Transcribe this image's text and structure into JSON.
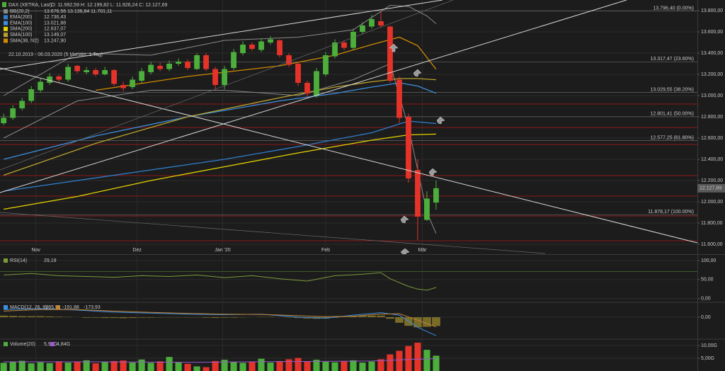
{
  "chart_data": [
    {
      "type": "candlestick",
      "title": "DAX (XETRA, Last)",
      "ohlc_label": "O: 11.992,59  H: 12.199,82  L: 11.926,24  C: 12.127,69",
      "period": "22.10.2019 - 06.03.2020 (5 Monate, 1 Tag)",
      "up_color": "#4caf3c",
      "down_color": "#e5332a",
      "xlim": [
        -0.4,
        75.4
      ],
      "xticks": [
        {
          "value": 3.5,
          "label": "Nov"
        },
        {
          "value": 14.5,
          "label": "Dez"
        },
        {
          "value": 23.8,
          "label": "Jan '20"
        },
        {
          "value": 35,
          "label": "Feb"
        },
        {
          "value": 45.5,
          "label": "Mär"
        }
      ],
      "ylim": [
        11520,
        13900
      ],
      "yticks": [
        {
          "value": 13800,
          "label": "13.800,00"
        },
        {
          "value": 13600,
          "label": "13.600,00"
        },
        {
          "value": 13400,
          "label": "13.400,00"
        },
        {
          "value": 13200,
          "label": "13.200,00"
        },
        {
          "value": 13000,
          "label": "13.000,00"
        },
        {
          "value": 12800,
          "label": "12.800,00"
        },
        {
          "value": 12600,
          "label": "12.600,00"
        },
        {
          "value": 12400,
          "label": "12.400,00"
        },
        {
          "value": 12200,
          "label": "12.200,00"
        },
        {
          "value": 12000,
          "label": "12.000,00"
        },
        {
          "value": 11800,
          "label": "11.800,00"
        },
        {
          "value": 11600,
          "label": "11.600,00"
        }
      ],
      "last_price": {
        "value": 12127.69,
        "label": "12.127,69"
      },
      "fib": [
        {
          "value": 13796.4,
          "label": "13.796,40 (0.00%)"
        },
        {
          "value": 13317.47,
          "label": "13.317,47 (23.60%)"
        },
        {
          "value": 13029.55,
          "label": "13.029,55 (38.20%)"
        },
        {
          "value": 12801.41,
          "label": "12.801,41 (50.00%)"
        },
        {
          "value": 12577.25,
          "label": "12.577,25 (61.80%)"
        },
        {
          "value": 11878.17,
          "label": "11.878,17 (100.00%)"
        }
      ],
      "open": [
        12740,
        12790,
        12880,
        12950,
        13050,
        13120,
        13180,
        13150,
        13280,
        13220,
        13240,
        13200,
        13240,
        13100,
        13080,
        13140,
        13220,
        13280,
        13250,
        13300,
        13320,
        13250,
        13380,
        13250,
        13100,
        13260,
        13400,
        13480,
        13430,
        13500,
        13520,
        13380,
        13300,
        13120,
        13000,
        13200,
        13370,
        13500,
        13450,
        13600,
        13650,
        13700,
        13650,
        13150,
        12800,
        12300,
        11830,
        11992.59
      ],
      "high": [
        12830,
        12910,
        12980,
        13090,
        13160,
        13210,
        13200,
        13300,
        13290,
        13270,
        13260,
        13270,
        13250,
        13130,
        13180,
        13260,
        13320,
        13310,
        13330,
        13350,
        13340,
        13400,
        13400,
        13270,
        13280,
        13440,
        13510,
        13500,
        13540,
        13560,
        13530,
        13400,
        13320,
        13140,
        13260,
        13410,
        13530,
        13520,
        13630,
        13690,
        13760,
        13790,
        13660,
        13180,
        12830,
        12400,
        12100,
        12199.82
      ],
      "low": [
        12720,
        12770,
        12860,
        12930,
        13030,
        13100,
        13120,
        13130,
        13210,
        13200,
        13180,
        13190,
        13090,
        13040,
        13060,
        13120,
        13200,
        13230,
        13230,
        13280,
        13240,
        13240,
        13230,
        13060,
        13060,
        13240,
        13380,
        13420,
        13410,
        13480,
        13360,
        13270,
        13090,
        12980,
        12980,
        13180,
        13350,
        13430,
        13430,
        13580,
        13630,
        13640,
        13120,
        12740,
        12180,
        11640,
        11820,
        11926.24
      ],
      "close": [
        12790,
        12880,
        12950,
        13060,
        13130,
        13180,
        13150,
        13270,
        13230,
        13240,
        13200,
        13240,
        13110,
        13070,
        13150,
        13230,
        13290,
        13250,
        13300,
        13320,
        13260,
        13380,
        13250,
        13100,
        13250,
        13410,
        13480,
        13440,
        13510,
        13530,
        13380,
        13290,
        13120,
        13020,
        13230,
        13380,
        13500,
        13450,
        13600,
        13660,
        13720,
        13660,
        13140,
        12790,
        12220,
        11860,
        12030,
        12127.69
      ],
      "series": [
        {
          "name": "BB(20,2)",
          "value_label": "13.676,56  13.136,84  11.701,11",
          "color": "#8a8a8a",
          "x": [
            0,
            8,
            16,
            24,
            32,
            38,
            42,
            44,
            46,
            47
          ],
          "values": [
            13000,
            13400,
            13380,
            13520,
            13550,
            13620,
            13850,
            13840,
            13750,
            13676.56
          ],
          "lower": [
            12600,
            12950,
            13050,
            13050,
            13000,
            13150,
            13300,
            12700,
            11900,
            11701.11
          ]
        },
        {
          "name": "EMA(200)",
          "value_label": "12.736,43",
          "color": "#2f7fd0",
          "x": [
            0,
            8,
            16,
            24,
            32,
            40,
            44,
            47
          ],
          "values": [
            12100,
            12200,
            12300,
            12400,
            12520,
            12650,
            12760,
            12736.43
          ]
        },
        {
          "name": "EMA(100)",
          "value_label": "13.021,88",
          "color": "#3d8fe0",
          "x": [
            0,
            10,
            20,
            30,
            36,
            40,
            43,
            45,
            47
          ],
          "values": [
            12400,
            12620,
            12800,
            12950,
            13020,
            13080,
            13120,
            13090,
            13021.88
          ]
        },
        {
          "name": "SMA(200)",
          "value_label": "12.637,07",
          "color": "#e6d200",
          "x": [
            0,
            8,
            16,
            24,
            32,
            40,
            44,
            47
          ],
          "values": [
            11930,
            12050,
            12200,
            12330,
            12460,
            12580,
            12630,
            12637.07
          ]
        },
        {
          "name": "SMA(100)",
          "value_label": "13.149,07",
          "color": "#b8a32c",
          "x": [
            0,
            10,
            20,
            30,
            36,
            40,
            43,
            45,
            47
          ],
          "values": [
            12250,
            12550,
            12800,
            12980,
            13080,
            13130,
            13160,
            13160,
            13149.07
          ]
        },
        {
          "name": "SMA(38, hl2)",
          "value_label": "13.247,90",
          "color": "#d08a00",
          "x": [
            10,
            20,
            30,
            36,
            40,
            43,
            45,
            47
          ],
          "values": [
            13050,
            13180,
            13280,
            13380,
            13480,
            13550,
            13470,
            13247.9
          ]
        }
      ]
    },
    {
      "type": "line",
      "xlim": [
        -0.4,
        75.4
      ],
      "ylim": [
        -8,
        111
      ],
      "yticks": [
        {
          "value": 100,
          "label": "100,00"
        },
        {
          "value": 50,
          "label": "50,00"
        },
        {
          "value": 0,
          "label": "0,00"
        }
      ],
      "series": [
        {
          "name": "RSI(14)",
          "value_label": "29,19",
          "color": "#7a9a3a",
          "x": [
            0,
            3,
            6,
            9,
            12,
            15,
            18,
            21,
            24,
            27,
            30,
            33,
            36,
            39,
            41,
            42,
            44,
            45,
            46,
            47
          ],
          "values": [
            62,
            66,
            60,
            58,
            56,
            60,
            58,
            62,
            55,
            60,
            52,
            46,
            60,
            64,
            68,
            52,
            32,
            25,
            22,
            29.19
          ]
        }
      ]
    },
    {
      "type": "line",
      "xlim": [
        -0.4,
        75.4
      ],
      "ylim": [
        -420,
        280
      ],
      "yticks": [
        {
          "value": 0,
          "label": "0,00"
        }
      ],
      "series": [
        {
          "name": "MACD(12, 26, 9)",
          "value_label": "-365,91",
          "color": "#3d8fe0",
          "x": [
            0,
            4,
            8,
            12,
            16,
            20,
            24,
            28,
            32,
            35,
            38,
            41,
            43,
            45,
            47
          ],
          "values": [
            150,
            170,
            140,
            100,
            80,
            60,
            50,
            60,
            0,
            -20,
            40,
            90,
            40,
            -200,
            -365.91
          ]
        },
        {
          "value_label": "-191,88",
          "color": "#c0843a",
          "x": [
            0,
            4,
            8,
            12,
            16,
            20,
            24,
            28,
            32,
            35,
            38,
            41,
            43,
            45,
            47
          ],
          "values": [
            120,
            150,
            150,
            120,
            95,
            75,
            60,
            55,
            30,
            10,
            20,
            60,
            70,
            -60,
            -191.88
          ]
        }
      ],
      "histogram": {
        "value_label": "-173,93",
        "color": "#8a7a2a",
        "values": [
          30,
          25,
          20,
          20,
          20,
          15,
          10,
          5,
          0,
          -10,
          -10,
          -15,
          -15,
          -20,
          -15,
          -10,
          -10,
          -5,
          -5,
          -5,
          -5,
          -5,
          -10,
          -15,
          -10,
          -10,
          -5,
          0,
          5,
          5,
          0,
          -5,
          -15,
          -25,
          -30,
          -25,
          -10,
          5,
          15,
          25,
          30,
          30,
          -30,
          -110,
          -170,
          -200,
          -190,
          -173.93
        ]
      }
    },
    {
      "type": "bar",
      "xlim": [
        -0.4,
        75.4
      ],
      "ylim": [
        0,
        12.2
      ],
      "yticks": [
        {
          "value": 10,
          "label": "10,00G"
        },
        {
          "value": 5,
          "label": "5,00G"
        }
      ],
      "series": [
        {
          "name": "Volume(20)",
          "value_label": "5,99G",
          "color": "#4caf3c",
          "values": [
            3.2,
            3.5,
            4,
            3,
            3.4,
            3.1,
            3.8,
            3.3,
            3.6,
            4.2,
            3,
            3.5,
            3.9,
            4.1,
            3.3,
            4.5,
            3.2,
            3.8,
            5.5,
            3.4,
            2.8,
            1.8,
            1.5,
            3.9,
            4.4,
            3.6,
            3.2,
            3.5,
            4.8,
            3.3,
            3.9,
            4.6,
            5.1,
            3.8,
            4.4,
            3.6,
            3.4,
            3.9,
            4.2,
            3.3,
            3.7,
            4.6,
            6.5,
            7.9,
            9.8,
            11.1,
            8.3,
            5.99
          ]
        },
        {
          "value_label": "4,84G",
          "color": "#9a5ad0",
          "x": [
            0,
            10,
            20,
            30,
            40,
            44,
            47
          ],
          "values": [
            3.6,
            3.6,
            3.4,
            3.7,
            3.9,
            4.5,
            4.84
          ]
        }
      ]
    }
  ]
}
